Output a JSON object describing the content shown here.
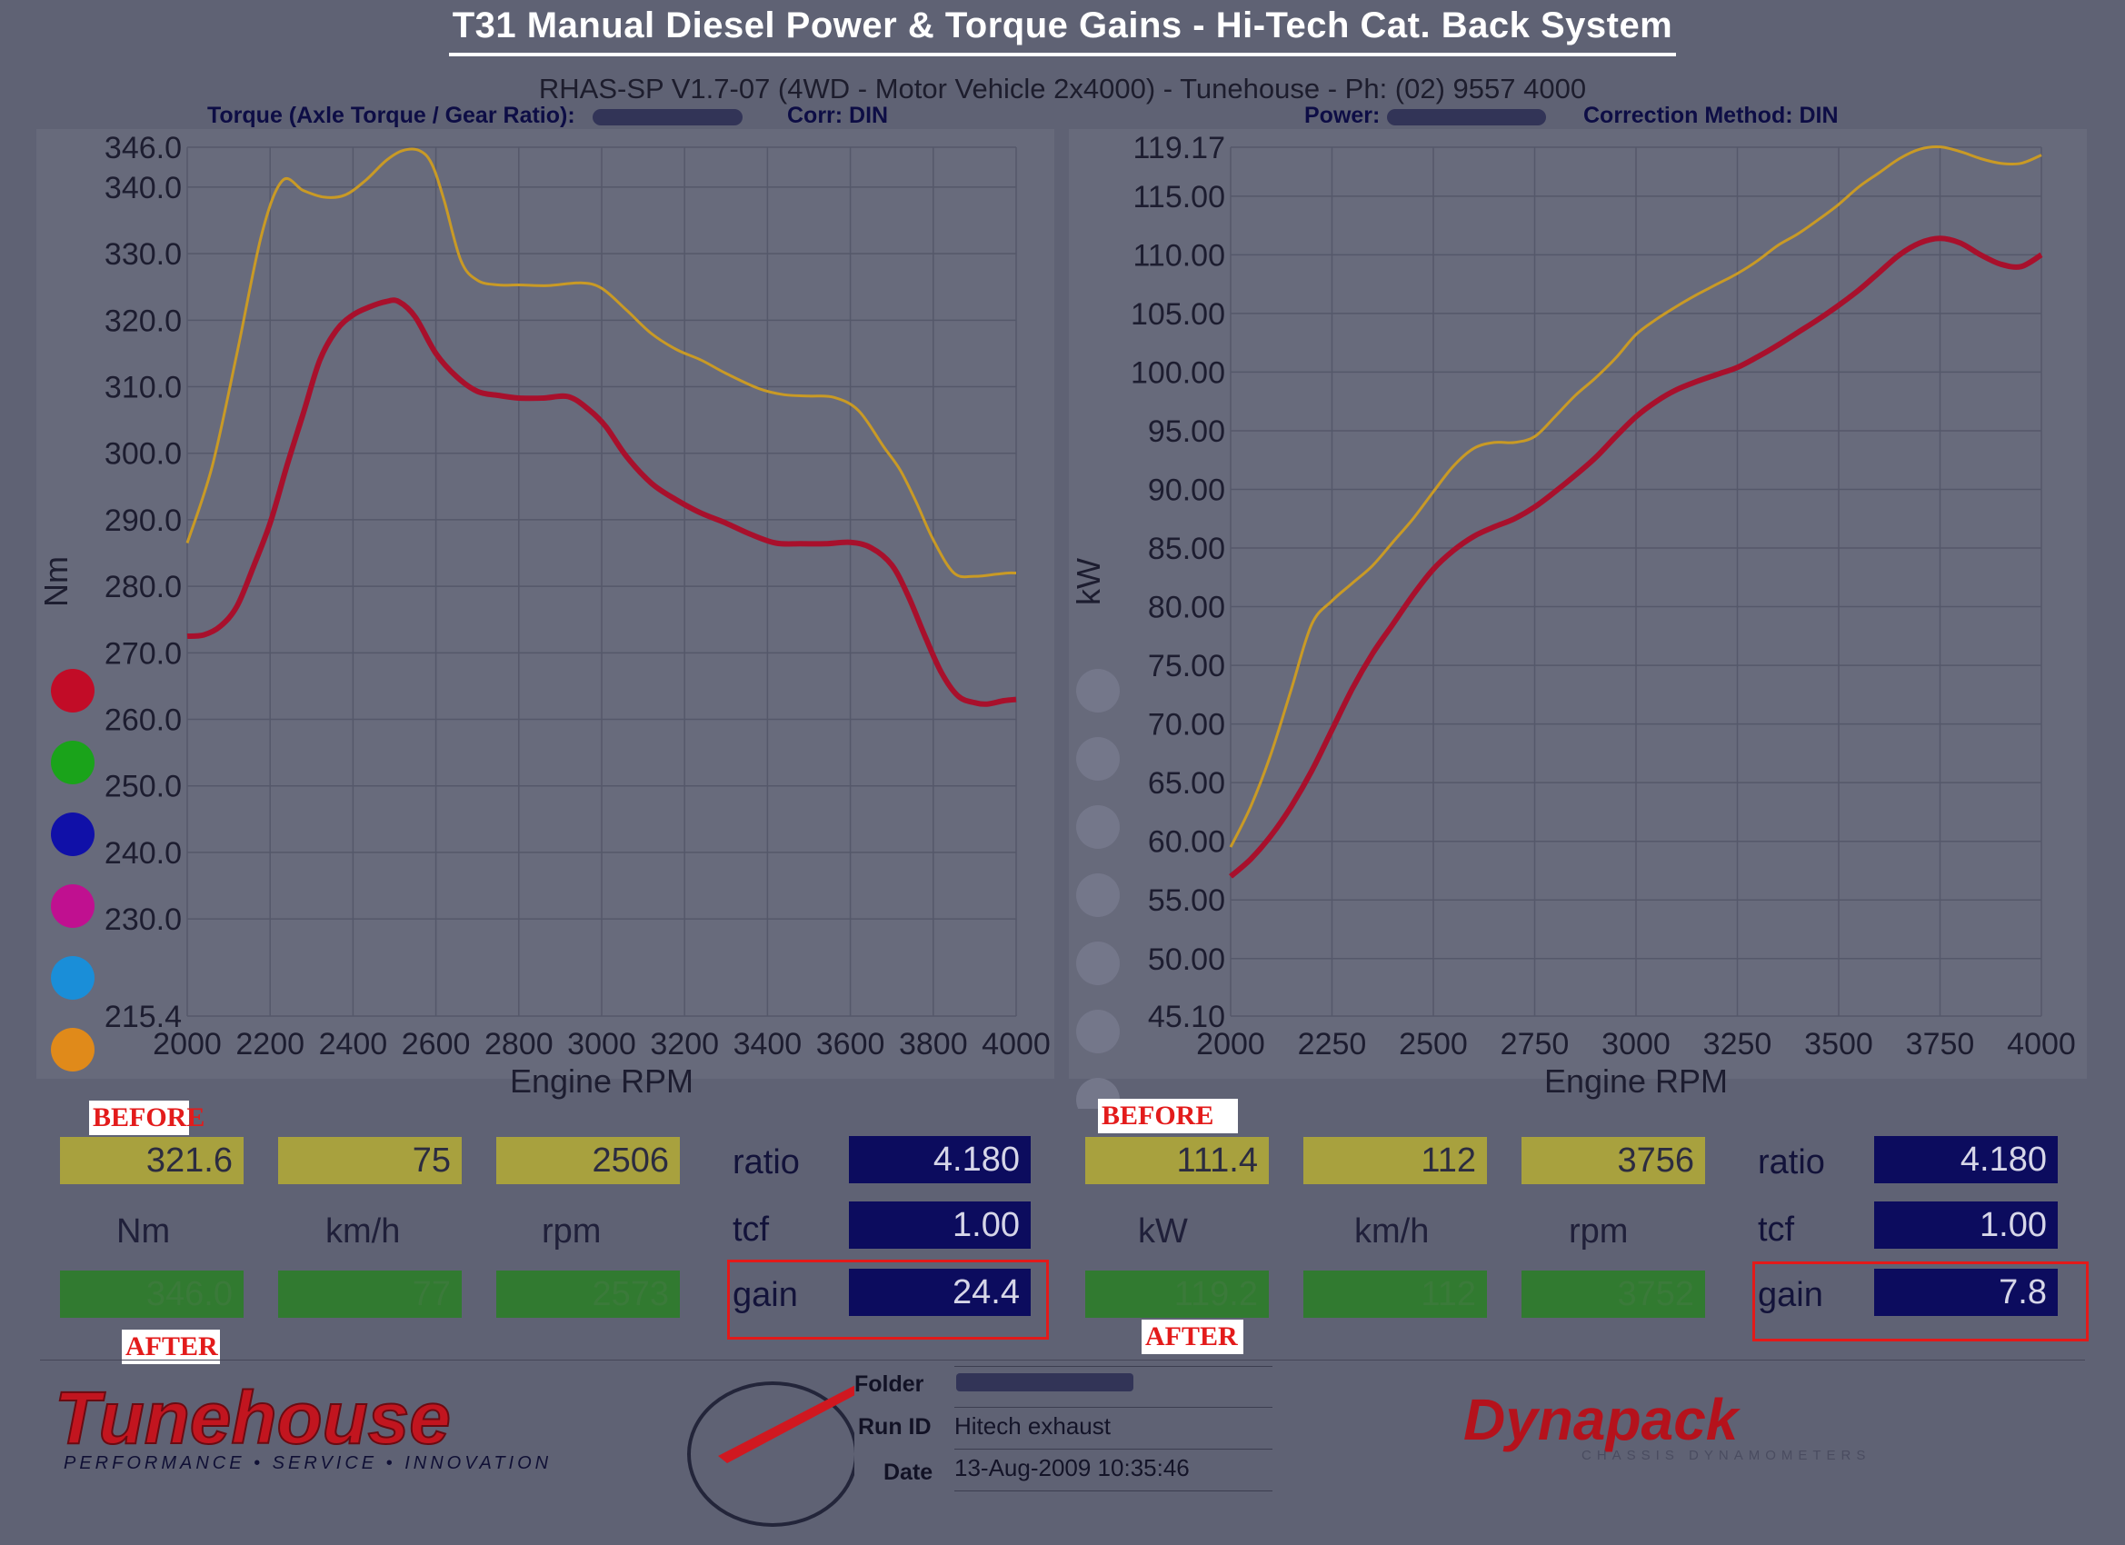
{
  "title": "T31 Manual Diesel Power & Torque Gains - Hi-Tech Cat. Back System",
  "header": {
    "main": "RHAS-SP V1.7-07  (4WD - Motor Vehicle 2x4000) - Tunehouse - Ph: (02) 9557 4000",
    "torque_label": "Torque (Axle Torque / Gear Ratio):",
    "torque_corr": "Corr: DIN",
    "power_label": "Power:",
    "power_corr": "Correction Method: DIN"
  },
  "chart_data": [
    {
      "type": "line",
      "ylabel": "Nm",
      "xlabel": "Engine RPM",
      "xlim": [
        2000,
        4000
      ],
      "ylim": [
        215.4,
        346.0
      ],
      "x_ticks": [
        "2000",
        "2200",
        "2400",
        "2600",
        "2800",
        "3000",
        "3200",
        "3400",
        "3600",
        "3800",
        "4000"
      ],
      "y_ticks": [
        "346.0",
        "340.0",
        "330.0",
        "320.0",
        "310.0",
        "300.0",
        "290.0",
        "280.0",
        "270.0",
        "260.0",
        "250.0",
        "240.0",
        "230.0",
        "215.4"
      ],
      "series": [
        {
          "color": "#c99a25",
          "x": [
            2000,
            2060,
            2120,
            2180,
            2230,
            2280,
            2330,
            2380,
            2430,
            2480,
            2520,
            2560,
            2590,
            2620,
            2660,
            2700,
            2750,
            2800,
            2870,
            2950,
            3000,
            3060,
            3120,
            3180,
            3240,
            3300,
            3380,
            3440,
            3500,
            3560,
            3620,
            3680,
            3720,
            3760,
            3800,
            3850,
            3900,
            3950,
            3980,
            4000
          ],
          "y": [
            286.5,
            298,
            315,
            333,
            341,
            339.5,
            338.5,
            338.8,
            341,
            344,
            345.5,
            345.5,
            343.5,
            338,
            329,
            326,
            325.3,
            325.3,
            325.2,
            325.6,
            324.8,
            321.5,
            318,
            315.6,
            314,
            312,
            309.7,
            308.8,
            308.6,
            308.4,
            306.4,
            301,
            297.5,
            292.5,
            287,
            282,
            281.5,
            281.8,
            282,
            282
          ]
        },
        {
          "color": "#a8102c",
          "x": [
            2000,
            2040,
            2080,
            2120,
            2160,
            2200,
            2240,
            2280,
            2320,
            2360,
            2400,
            2440,
            2480,
            2510,
            2550,
            2600,
            2650,
            2700,
            2750,
            2800,
            2860,
            2920,
            2970,
            3010,
            3060,
            3120,
            3180,
            3240,
            3300,
            3360,
            3420,
            3480,
            3540,
            3600,
            3650,
            3700,
            3740,
            3780,
            3820,
            3860,
            3900,
            3930,
            3970,
            4000
          ],
          "y": [
            272.5,
            272.7,
            274,
            277,
            283,
            289.5,
            298,
            306,
            314,
            318.5,
            320.8,
            322,
            322.8,
            322.8,
            320.5,
            315,
            311.5,
            309.3,
            308.7,
            308.3,
            308.3,
            308.5,
            306.5,
            304,
            299.5,
            295.5,
            293,
            291,
            289.5,
            287.8,
            286.5,
            286.4,
            286.4,
            286.6,
            285.8,
            283.2,
            278.5,
            272.5,
            267,
            263.5,
            262.5,
            262.3,
            262.8,
            263
          ]
        }
      ]
    },
    {
      "type": "line",
      "ylabel": "kW",
      "xlabel": "Engine RPM",
      "xlim": [
        2000,
        4000
      ],
      "ylim": [
        45.1,
        119.17
      ],
      "x_ticks": [
        "2000",
        "2250",
        "2500",
        "2750",
        "3000",
        "3250",
        "3500",
        "3750",
        "4000"
      ],
      "y_ticks": [
        "119.17",
        "115.00",
        "110.00",
        "105.00",
        "100.00",
        "95.00",
        "90.00",
        "85.00",
        "80.00",
        "75.00",
        "70.00",
        "65.00",
        "60.00",
        "55.00",
        "50.00",
        "45.10"
      ],
      "series": [
        {
          "color": "#c99a25",
          "x": [
            2000,
            2050,
            2100,
            2150,
            2200,
            2250,
            2300,
            2350,
            2400,
            2450,
            2500,
            2550,
            2600,
            2650,
            2700,
            2750,
            2800,
            2850,
            2900,
            2950,
            3000,
            3050,
            3100,
            3150,
            3200,
            3250,
            3300,
            3350,
            3400,
            3450,
            3500,
            3550,
            3600,
            3650,
            3700,
            3750,
            3800,
            3850,
            3900,
            3950,
            4000
          ],
          "y": [
            59.5,
            63,
            67.5,
            73,
            78.5,
            80.5,
            82,
            83.5,
            85.5,
            87.5,
            89.8,
            92,
            93.5,
            94,
            94,
            94.5,
            96.2,
            98,
            99.5,
            101.2,
            103.2,
            104.5,
            105.6,
            106.6,
            107.5,
            108.4,
            109.5,
            110.8,
            111.8,
            113,
            114.3,
            115.8,
            117,
            118.2,
            119,
            119.2,
            118.8,
            118.2,
            117.8,
            117.8,
            118.5
          ]
        },
        {
          "color": "#a8102c",
          "x": [
            2000,
            2050,
            2100,
            2150,
            2200,
            2250,
            2300,
            2350,
            2400,
            2450,
            2500,
            2550,
            2600,
            2650,
            2700,
            2750,
            2800,
            2850,
            2900,
            2950,
            3000,
            3050,
            3100,
            3150,
            3200,
            3250,
            3300,
            3350,
            3400,
            3450,
            3500,
            3550,
            3600,
            3650,
            3700,
            3750,
            3800,
            3850,
            3900,
            3950,
            4000
          ],
          "y": [
            57,
            58.5,
            60.5,
            63,
            66,
            69.5,
            73,
            76,
            78.5,
            81,
            83.2,
            84.8,
            86,
            86.8,
            87.5,
            88.5,
            89.8,
            91.2,
            92.7,
            94.5,
            96.2,
            97.5,
            98.5,
            99.2,
            99.8,
            100.4,
            101.3,
            102.3,
            103.4,
            104.5,
            105.7,
            107,
            108.5,
            110,
            111,
            111.4,
            111,
            110,
            109.2,
            109,
            110
          ]
        }
      ]
    }
  ],
  "legend_dots_left": [
    "#c20c27",
    "#1aa31a",
    "#1010a8",
    "#c01090",
    "#1a8ed8",
    "#e08a1a"
  ],
  "left_panel": {
    "before_tag": "BEFORE",
    "after_tag": "AFTER",
    "before_values": [
      "321.6",
      "75",
      "2506"
    ],
    "after_values": [
      "346.0",
      "77",
      "2573"
    ],
    "units": [
      "Nm",
      "km/h",
      "rpm"
    ],
    "ratio_label": "ratio",
    "ratio_value": "4.180",
    "tcf_label": "tcf",
    "tcf_value": "1.00",
    "gain_label": "gain",
    "gain_value": "24.4"
  },
  "right_panel": {
    "before_tag": "BEFORE",
    "after_tag": "AFTER",
    "before_values": [
      "111.4",
      "112",
      "3756"
    ],
    "after_values": [
      "119.2",
      "112",
      "3752"
    ],
    "units": [
      "kW",
      "km/h",
      "rpm"
    ],
    "ratio_label": "ratio",
    "ratio_value": "4.180",
    "tcf_label": "tcf",
    "tcf_value": "1.00",
    "gain_label": "gain",
    "gain_value": "7.8"
  },
  "footer": {
    "brand": "Tunehouse",
    "tagline": "PERFORMANCE • SERVICE • INNOVATION",
    "folder_label": "Folder",
    "runid_label": "Run ID",
    "runid_value": "Hitech exhaust",
    "date_label": "Date",
    "date_value": "13-Aug-2009  10:35:46",
    "dynapack_brand": "Dynapack",
    "dynapack_sub": "CHASSIS DYNAMOMETERS"
  }
}
